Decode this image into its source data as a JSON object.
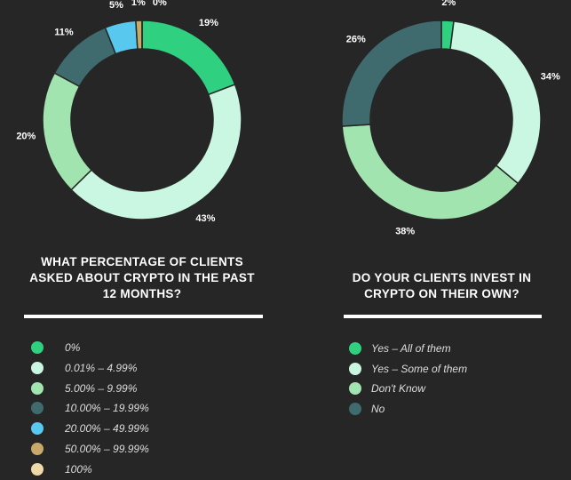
{
  "chart_data": [
    {
      "type": "pie",
      "donut": true,
      "title": "WHAT PERCENTAGE OF CLIENTS ASKED ABOUT CRYPTO IN THE PAST 12 MONTHS?",
      "categories": [
        "0%",
        "0.01% – 4.99%",
        "5.00% – 9.99%",
        "10.00% – 19.99%",
        "20.00% – 49.99%",
        "50.00% – 99.99%",
        "100%"
      ],
      "values": [
        19,
        43,
        20,
        11,
        5,
        1,
        0
      ],
      "value_labels": [
        "19%",
        "43%",
        "20%",
        "11%",
        "5%",
        "1%",
        "0%"
      ],
      "colors": [
        "#2fd07f",
        "#c9f7e1",
        "#a2e4b0",
        "#3f6b6e",
        "#58c8ef",
        "#c8a96a",
        "#f0d9a8"
      ]
    },
    {
      "type": "pie",
      "donut": true,
      "title": "DO YOUR CLIENTS INVEST IN CRYPTO ON THEIR OWN?",
      "categories": [
        "Yes – All of them",
        "Yes – Some of them",
        "Don't Know",
        "No"
      ],
      "values": [
        2,
        34,
        38,
        26
      ],
      "value_labels": [
        "2%",
        "34%",
        "38%",
        "26%"
      ],
      "colors": [
        "#2fd07f",
        "#c9f7e1",
        "#a2e4b0",
        "#3f6b6e"
      ]
    }
  ]
}
